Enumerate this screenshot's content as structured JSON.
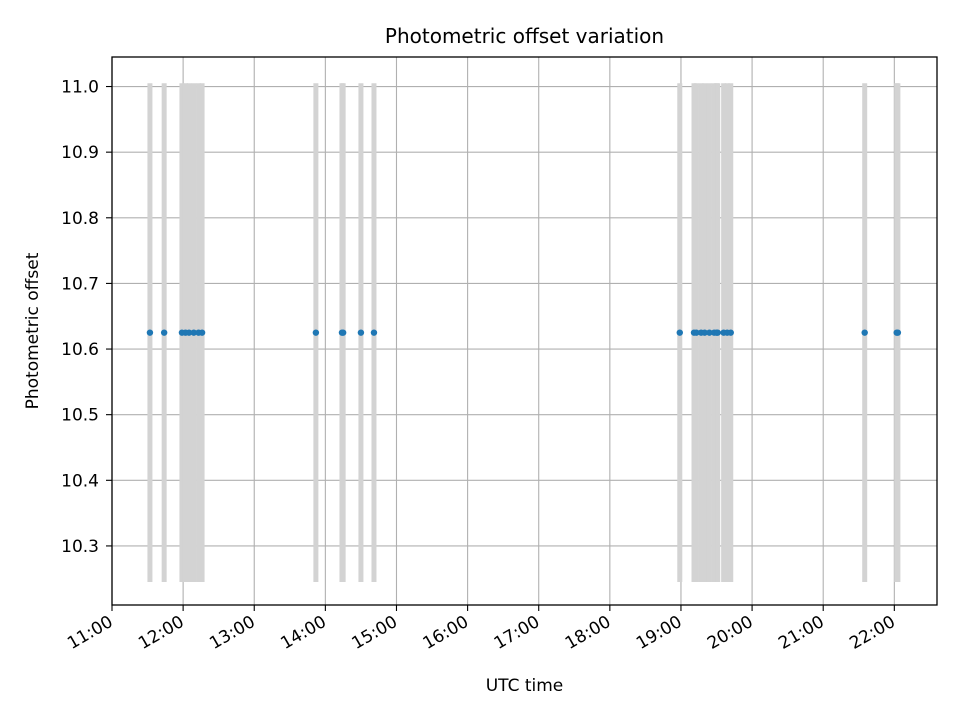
{
  "chart_data": {
    "type": "scatter",
    "title": "Photometric offset variation",
    "xlabel": "UTC time",
    "ylabel": "Photometric offset",
    "x_tick_labels": [
      "11:00",
      "12:00",
      "13:00",
      "14:00",
      "15:00",
      "16:00",
      "17:00",
      "18:00",
      "19:00",
      "20:00",
      "21:00",
      "22:00"
    ],
    "y_tick_labels": [
      "10.3",
      "10.4",
      "10.5",
      "10.6",
      "10.7",
      "10.8",
      "10.9",
      "11.0"
    ],
    "xlim": [
      "11:00",
      "22:36"
    ],
    "ylim": [
      10.21,
      11.045
    ],
    "grid": true,
    "colors": {
      "points": "#1f77b4",
      "error_bars": "#d3d3d3",
      "grid": "#b0b0b0"
    },
    "error_bar_range": [
      10.245,
      11.005
    ],
    "series": [
      {
        "x": [
          "11:32",
          "11:44",
          "11:59",
          "12:02",
          "12:05",
          "12:09",
          "12:13",
          "12:16",
          "13:52",
          "14:14",
          "14:15",
          "14:30",
          "14:41",
          "18:59",
          "19:11",
          "19:13",
          "19:17",
          "19:20",
          "19:24",
          "19:28",
          "19:30",
          "19:31",
          "19:36",
          "19:39",
          "19:42",
          "21:35",
          "22:02",
          "22:03"
        ],
        "y": [
          10.625,
          10.625,
          10.625,
          10.625,
          10.625,
          10.625,
          10.625,
          10.625,
          10.625,
          10.625,
          10.625,
          10.625,
          10.625,
          10.625,
          10.625,
          10.625,
          10.625,
          10.625,
          10.625,
          10.625,
          10.625,
          10.625,
          10.625,
          10.625,
          10.625,
          10.625,
          10.625,
          10.625
        ]
      }
    ]
  }
}
